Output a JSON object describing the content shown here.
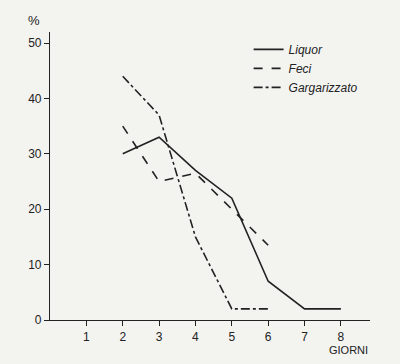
{
  "chart_data": {
    "type": "line",
    "x_label": "GIORNI",
    "y_label": "%",
    "series": [
      {
        "name": "Liquor",
        "color": "#222222",
        "line_style": "solid",
        "x": [
          2,
          3,
          4,
          5,
          6,
          7,
          8
        ],
        "values": [
          30,
          33,
          27,
          22,
          7,
          2,
          2
        ]
      },
      {
        "name": "Feci",
        "color": "#222222",
        "line_style": "dash",
        "x": [
          2,
          3,
          4,
          5,
          6
        ],
        "values": [
          35,
          25,
          26.5,
          20,
          13.5
        ]
      },
      {
        "name": "Gargarizzato",
        "color": "#222222",
        "line_style": "dashdot",
        "x": [
          2,
          3,
          4,
          5,
          6
        ],
        "values": [
          44,
          37,
          15,
          2,
          2
        ]
      }
    ],
    "xlim": [
      0,
      8.8
    ],
    "xticks": [
      1,
      2,
      3,
      4,
      5,
      6,
      7,
      8
    ],
    "ylim": [
      0,
      52
    ],
    "yticks": [
      0,
      10,
      20,
      30,
      40,
      50
    ],
    "grid": false,
    "legend": "upper right"
  }
}
